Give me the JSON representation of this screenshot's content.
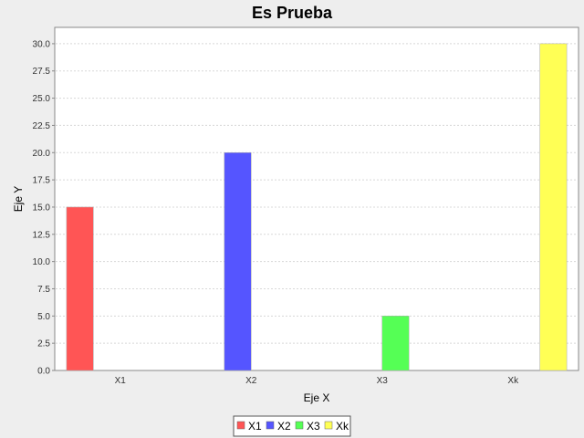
{
  "chart_data": {
    "type": "bar",
    "title": "Es Prueba",
    "xlabel": "Eje X",
    "ylabel": "Eje Y",
    "categories": [
      "X1",
      "X2",
      "X3",
      "Xk"
    ],
    "series": [
      {
        "name": "X1",
        "color": "#ff5555",
        "values": [
          15.0,
          0,
          0,
          0
        ]
      },
      {
        "name": "X2",
        "color": "#5555ff",
        "values": [
          0,
          20.0,
          0,
          0
        ]
      },
      {
        "name": "X3",
        "color": "#55ff55",
        "values": [
          0,
          0,
          5.0,
          0
        ]
      },
      {
        "name": "Xk",
        "color": "#ffff55",
        "values": [
          0,
          0,
          0,
          30.0
        ]
      }
    ],
    "ylim": [
      0,
      31.5
    ],
    "yticks": [
      "0.0",
      "2.5",
      "5.0",
      "7.5",
      "10.0",
      "12.5",
      "15.0",
      "17.5",
      "20.0",
      "22.5",
      "25.0",
      "27.5",
      "30.0"
    ],
    "grid": true,
    "legend_position": "bottom"
  }
}
